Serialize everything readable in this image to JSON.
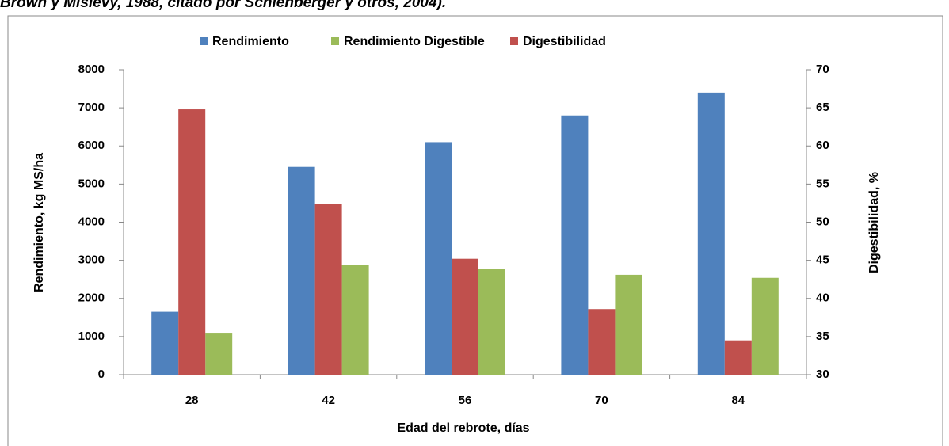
{
  "caption": "Brown y Mislevy, 1988, citado por Schlenberger y otros, 2004).",
  "chart_data": {
    "type": "bar",
    "x_label": "Edad del rebrote, días",
    "y_label": "Rendimiento, kg MS/ha",
    "y2_label": "Digestibilidad, %",
    "categories": [
      "28",
      "42",
      "56",
      "70",
      "84"
    ],
    "series": [
      {
        "name": "Rendimiento",
        "color": "#4f81bd",
        "values": [
          1650,
          5450,
          6100,
          6800,
          7400
        ]
      },
      {
        "name": "Rendimiento Digestible",
        "color": "#9bbb59",
        "values": [
          1100,
          2870,
          2770,
          2620,
          2540
        ]
      },
      {
        "name": "Digestibilidad",
        "color": "#c0504d",
        "axis": "y2",
        "values": [
          64.8,
          52.4,
          45.2,
          38.6,
          34.5
        ]
      }
    ],
    "ylim": [
      0,
      8000
    ],
    "yticks": [
      0,
      1000,
      2000,
      3000,
      4000,
      5000,
      6000,
      7000,
      8000
    ],
    "y2lim": [
      30,
      70
    ],
    "y2ticks": [
      30,
      35,
      40,
      45,
      50,
      55,
      60,
      65,
      70
    ],
    "legend": "top"
  }
}
